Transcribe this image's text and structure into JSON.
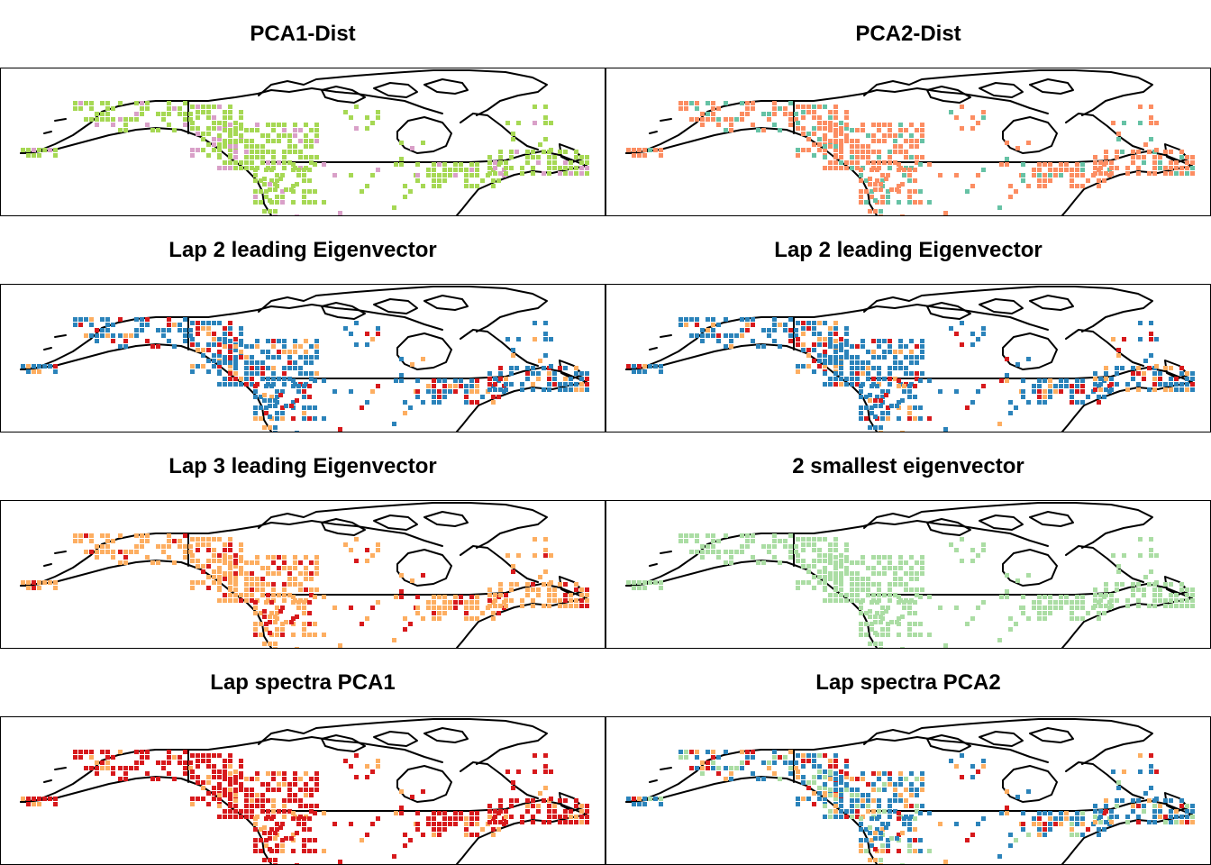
{
  "figure": {
    "panels": [
      {
        "title": "PCA1-Dist",
        "palette": [
          "#a6d854",
          "#a6d854",
          "#a6d854",
          "#a6d854",
          "#d9a0c8"
        ]
      },
      {
        "title": "PCA2-Dist",
        "palette": [
          "#fc8d62",
          "#fc8d62",
          "#fc8d62",
          "#fc8d62",
          "#66c2a5"
        ]
      },
      {
        "title": "Lap 2 leading Eigenvector",
        "palette": [
          "#2b83ba",
          "#2b83ba",
          "#2b83ba",
          "#2b83ba",
          "#d7191c",
          "#fdae61"
        ]
      },
      {
        "title": "Lap 2 leading Eigenvector",
        "palette": [
          "#2b83ba",
          "#2b83ba",
          "#2b83ba",
          "#2b83ba",
          "#d7191c",
          "#fdae61"
        ]
      },
      {
        "title": "Lap 3 leading Eigenvector",
        "palette": [
          "#fdae61",
          "#fdae61",
          "#fdae61",
          "#fdae61",
          "#d7191c"
        ]
      },
      {
        "title": "2 smallest eigenvector",
        "palette": [
          "#abdda4",
          "#abdda4",
          "#abdda4",
          "#abdda4",
          "#abdda4"
        ]
      },
      {
        "title": "Lap spectra PCA1",
        "palette": [
          "#d7191c",
          "#d7191c",
          "#d7191c",
          "#d7191c",
          "#fdae61"
        ]
      },
      {
        "title": "Lap spectra PCA2",
        "palette": [
          "#2b83ba",
          "#2b83ba",
          "#abdda4",
          "#2b83ba",
          "#fdae61",
          "#d7191c"
        ]
      }
    ]
  }
}
